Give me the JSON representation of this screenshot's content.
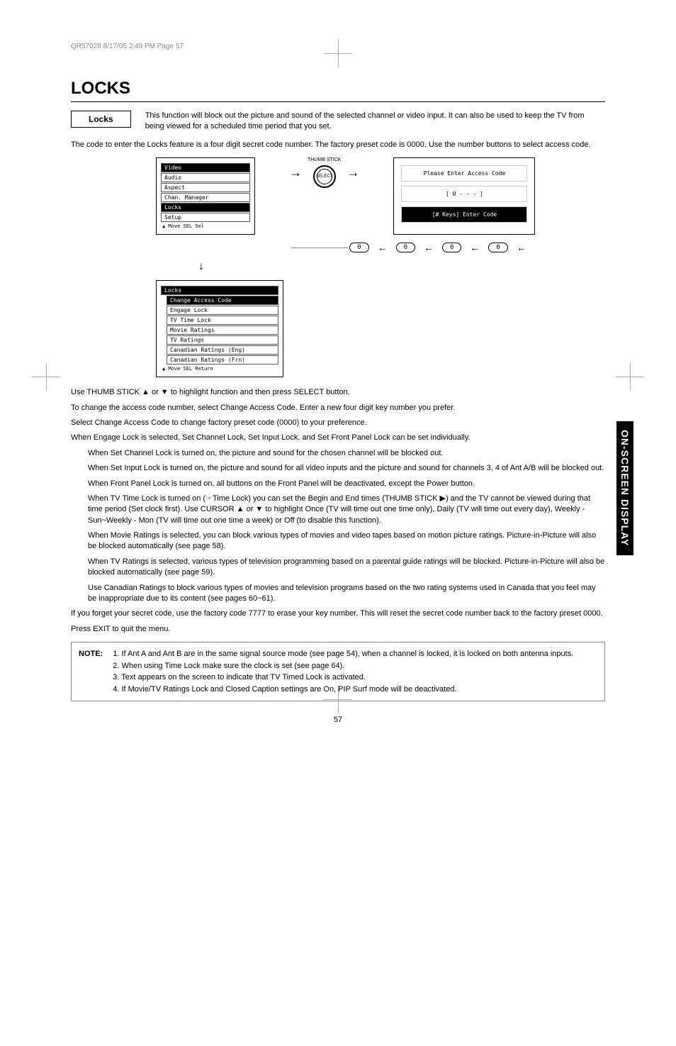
{
  "header_line": "QR57028  8/17/05  2:49 PM  Page 57",
  "title": "LOCKS",
  "locks_label": "Locks",
  "locks_description": "This function will block out the picture and sound of the selected channel or video input. It can also be used to keep the TV from being viewed for a scheduled time period that you set.",
  "intro_line": "The code to enter the Locks feature is a four digit secret code number.  The factory preset code is 0000. Use the number buttons to select access code.",
  "main_menu": {
    "items": [
      {
        "label": "Video",
        "inv": true
      },
      {
        "label": "Audio",
        "inv": false
      },
      {
        "label": "Aspect",
        "inv": false
      },
      {
        "label": "Chan. Manager",
        "inv": false
      },
      {
        "label": "Locks",
        "inv": true
      },
      {
        "label": "Setup",
        "inv": false
      }
    ],
    "footer": "▲ Move  SEL Sel"
  },
  "thumb_label": "THUMB STICK",
  "stick_text": "SELECT",
  "code_box": {
    "line1": "Please Enter Access Code",
    "line2": "[ 0 - - - ]",
    "line3": "[# Keys] Enter Code"
  },
  "zero_buttons": [
    "0",
    "0",
    "0",
    "0"
  ],
  "locks_submenu": {
    "header": "Locks",
    "items": [
      "Change Access Code",
      "Engage Lock",
      "TV Time Lock",
      "Movie Ratings",
      "TV Ratings",
      "Canadian Ratings (Eng)",
      "Canadian Ratings (Frn)"
    ],
    "footer": "▲ Move  SEL Return"
  },
  "paragraphs": [
    {
      "text": "Use THUMB STICK ▲ or ▼ to highlight function and then press SELECT button.",
      "indent": false
    },
    {
      "text": "To change the access code number, select Change Access Code.  Enter a new four digit key number you prefer.",
      "indent": false
    },
    {
      "text": "Select Change Access Code to change factory preset code (0000) to your preference.",
      "indent": false
    },
    {
      "text": "When Engage Lock is selected, Set Channel Lock, Set Input Lock, and Set Front Panel Lock can be set individually.",
      "indent": false
    },
    {
      "text": "When Set Channel Lock is turned on, the picture and sound for the chosen channel will be blocked out.",
      "indent": true
    },
    {
      "text": "When Set Input Lock is turned on, the picture and sound for all video inputs and the picture and sound for channels 3, 4 of Ant A/B will be blocked out.",
      "indent": true
    },
    {
      "text": "When Front Panel Lock is turned on, all buttons on the Front Panel will be deactivated, except the Power button.",
      "indent": true
    },
    {
      "text": "When TV Time Lock is turned on (☞Time Lock) you can set the Begin and End times (THUMB STICK ▶) and the TV cannot be viewed during that time period (Set clock first). Use CURSOR ▲ or ▼ to highlight Once (TV will time out one time only), Daily (TV will time out every day), Weekly - Sun~Weekly - Mon (TV will time out one time a week) or Off (to disable this function).",
      "indent": true
    },
    {
      "text": "When Movie Ratings is selected, you can block various types of movies and video tapes based on motion picture ratings.  Picture-in-Picture will also be blocked automatically (see page 58).",
      "indent": true
    },
    {
      "text": "When TV Ratings is selected, various types of television programming based on a parental guide ratings will be blocked.  Picture-in-Picture will also be blocked automatically (see page 59).",
      "indent": true
    },
    {
      "text": "Use Canadian Ratings to block various types of movies and television programs based on the two rating systems used in  Canada that you feel may be inappropriate due to its content (see pages 60~61).",
      "indent": true
    },
    {
      "text": "If you forget your secret code, use the factory code 7777 to erase your key number. This will reset the secret code number back to the factory preset 0000.",
      "indent": false
    },
    {
      "text": "Press EXIT to quit the menu.",
      "indent": false
    }
  ],
  "note": {
    "label": "NOTE:",
    "items": [
      "1. If Ant A and Ant B are in the same signal source mode (see page 54), when a channel is locked, it is locked on both antenna inputs.",
      "2. When using Time Lock make sure the clock is set (see page 64).",
      "3. Text appears on the screen to indicate that TV Timed Lock is activated.",
      "4. If Movie/TV Ratings Lock and Closed Caption settings are On, PIP Surf mode will be deactivated."
    ]
  },
  "side_tab": "ON-SCREEN DISPLAY",
  "page_number": "57"
}
